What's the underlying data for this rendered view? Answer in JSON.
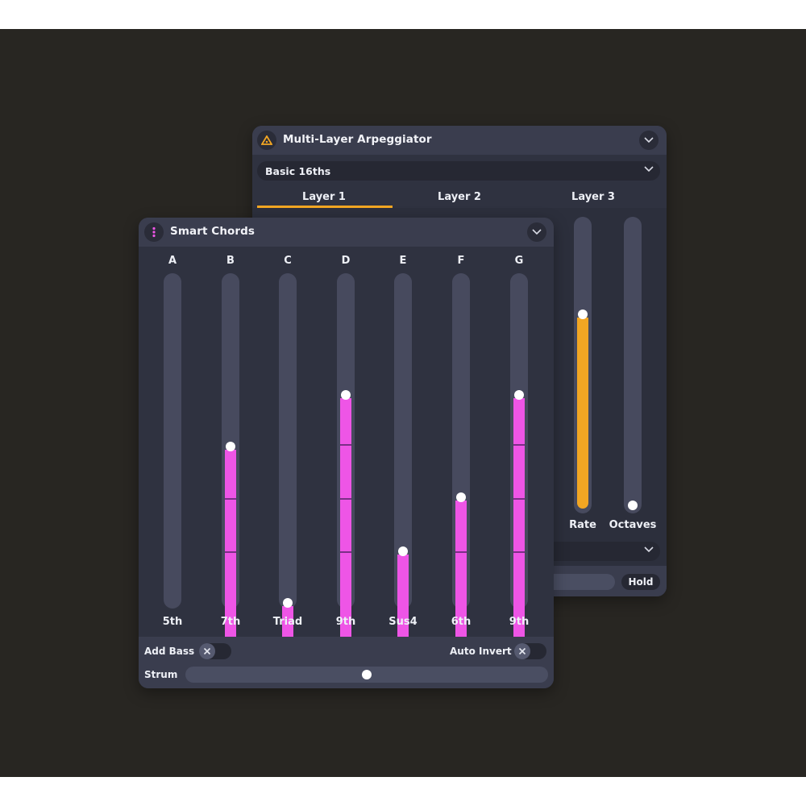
{
  "arp": {
    "title": "Multi-Layer Arpeggiator",
    "icon": "arpeggiator-icon",
    "preset": "Basic 16ths",
    "tabs": [
      {
        "label": "Layer 1",
        "active": true
      },
      {
        "label": "Layer 2",
        "active": false
      },
      {
        "label": "Layer 3",
        "active": false
      }
    ],
    "sliders": [
      {
        "label": "Rate",
        "value": 0.68,
        "color": "#f2a623"
      },
      {
        "label": "Octaves",
        "value": 0.0,
        "color": "#f2a623"
      }
    ],
    "hold_label": "Hold"
  },
  "chords": {
    "title": "Smart Chords",
    "icon": "chord-stack-icon",
    "accent": "#ee55e6",
    "columns": [
      {
        "letter": "A",
        "label": "5th",
        "value": 0.0
      },
      {
        "letter": "B",
        "label": "7th",
        "value": 0.65
      },
      {
        "letter": "C",
        "label": "Triad",
        "value": 0.16
      },
      {
        "letter": "D",
        "label": "9th",
        "value": 0.81
      },
      {
        "letter": "E",
        "label": "Sus4",
        "value": 0.32
      },
      {
        "letter": "F",
        "label": "6th",
        "value": 0.49
      },
      {
        "letter": "G",
        "label": "9th",
        "value": 0.81
      }
    ],
    "add_bass_label": "Add Bass",
    "add_bass_on": false,
    "auto_invert_label": "Auto Invert",
    "auto_invert_on": false,
    "strum_label": "Strum",
    "strum_value": 0.5
  }
}
